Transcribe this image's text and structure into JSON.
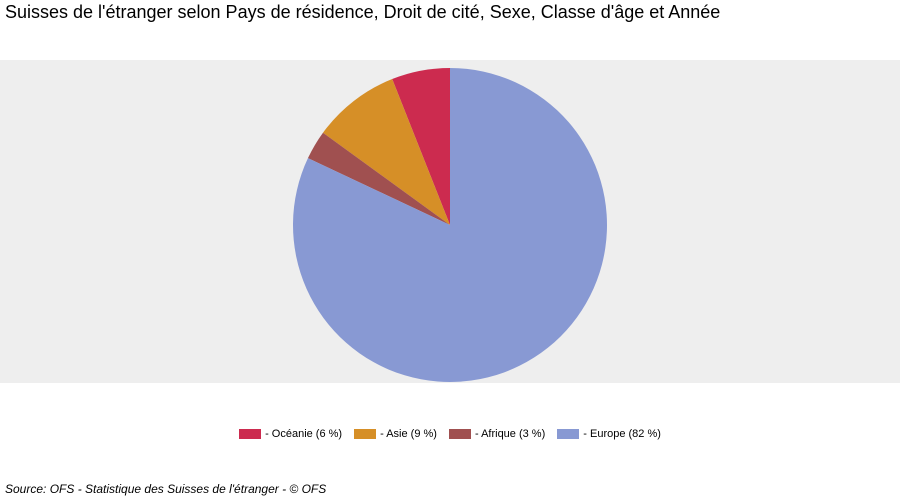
{
  "chart_data": {
    "type": "pie",
    "title": "Suisses de l'étranger selon Pays de résidence, Droit de cité, Sexe, Classe d'âge et Année",
    "slices": [
      {
        "label": "- Océanie (6 %)",
        "value": 6,
        "color": "#cc2b4f"
      },
      {
        "label": "- Asie (9 %)",
        "value": 9,
        "color": "#d68f27"
      },
      {
        "label": "- Afrique (3 %)",
        "value": 3,
        "color": "#a05050"
      },
      {
        "label": "- Europe (82 %)",
        "value": 82,
        "color": "#8899d3"
      }
    ],
    "legend_position": "bottom",
    "plot_background": "#eeeeee"
  },
  "source": "Source: OFS - Statistique des Suisses de l'étranger - © OFS"
}
